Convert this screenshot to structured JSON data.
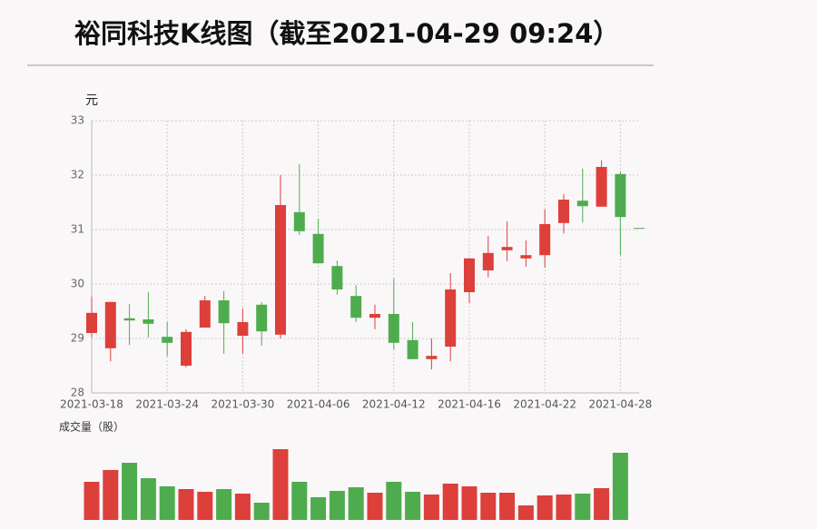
{
  "chart_data": {
    "type": "candlestick",
    "title": "裕同科技K线图（截至2021-04-29 09:24）",
    "y_label": "元",
    "volume_label": "成交量（股）",
    "categories": [
      "2021-03-18",
      null,
      null,
      null,
      "2021-03-24",
      null,
      null,
      null,
      "2021-03-30",
      null,
      null,
      null,
      "2021-04-06",
      null,
      null,
      null,
      "2021-04-12",
      null,
      null,
      null,
      "2021-04-16",
      null,
      null,
      null,
      "2021-04-22",
      null,
      null,
      null,
      "2021-04-28",
      null
    ],
    "open": [
      29.1,
      28.82,
      29.37,
      29.35,
      29.03,
      28.5,
      29.2,
      29.7,
      29.05,
      29.62,
      29.07,
      31.32,
      30.92,
      30.33,
      29.78,
      29.38,
      29.45,
      28.97,
      28.62,
      28.85,
      29.85,
      30.25,
      30.62,
      30.47,
      30.53,
      31.12,
      31.53,
      31.42,
      32.02,
      31.03
    ],
    "high": [
      29.77,
      29.67,
      29.63,
      29.85,
      29.3,
      29.17,
      29.78,
      29.87,
      29.55,
      29.67,
      32.0,
      32.2,
      31.2,
      30.43,
      29.98,
      29.62,
      30.1,
      29.3,
      29.0,
      30.2,
      30.48,
      30.88,
      31.15,
      30.8,
      31.37,
      31.65,
      32.12,
      32.27,
      32.07,
      31.03
    ],
    "low": [
      29.02,
      28.58,
      28.88,
      29.02,
      28.67,
      28.47,
      29.2,
      28.72,
      28.72,
      28.87,
      29.0,
      30.9,
      30.38,
      29.8,
      29.3,
      29.17,
      28.8,
      28.62,
      28.43,
      28.58,
      29.65,
      30.12,
      30.42,
      30.32,
      30.3,
      30.93,
      31.13,
      31.42,
      30.53,
      31.03
    ],
    "close": [
      29.47,
      29.67,
      29.33,
      29.27,
      28.92,
      29.12,
      29.7,
      29.28,
      29.3,
      29.13,
      31.45,
      30.97,
      30.38,
      29.9,
      29.38,
      29.45,
      28.92,
      28.62,
      28.68,
      29.9,
      30.47,
      30.57,
      30.68,
      30.53,
      31.1,
      31.55,
      31.43,
      32.15,
      31.23,
      31.03
    ],
    "volume": [
      42,
      55,
      63,
      46,
      37,
      34,
      31,
      34,
      29,
      19,
      78,
      42,
      25,
      32,
      36,
      30,
      42,
      31,
      28,
      40,
      37,
      30,
      30,
      16,
      27,
      28,
      29,
      35,
      74,
      0
    ],
    "up_color": "#dd3f3a",
    "down_color": "#4eac4e",
    "ylim": [
      28,
      33
    ],
    "yticks": [
      28,
      29,
      30,
      31,
      32,
      33
    ],
    "grid": true
  }
}
